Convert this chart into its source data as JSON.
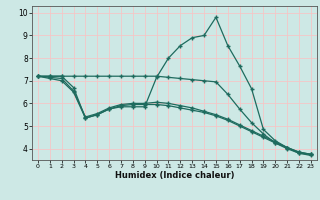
{
  "title": "",
  "xlabel": "Humidex (Indice chaleur)",
  "ylabel": "",
  "bg_color": "#cde8e5",
  "grid_color_h": "#f5c6c6",
  "grid_color_v": "#f5c6c6",
  "line_color": "#1e6b5e",
  "xlim": [
    -0.5,
    23.5
  ],
  "ylim": [
    3.5,
    10.3
  ],
  "xticks": [
    0,
    1,
    2,
    3,
    4,
    5,
    6,
    7,
    8,
    9,
    10,
    11,
    12,
    13,
    14,
    15,
    16,
    17,
    18,
    19,
    20,
    21,
    22,
    23
  ],
  "yticks": [
    4,
    5,
    6,
    7,
    8,
    9,
    10
  ],
  "line1_x": [
    0,
    1,
    2,
    3,
    4,
    5,
    6,
    7,
    8,
    9,
    10,
    11,
    12,
    13,
    14,
    15,
    16,
    17,
    18,
    19,
    20,
    21,
    22,
    23
  ],
  "line1_y": [
    7.2,
    7.2,
    7.2,
    6.7,
    5.35,
    5.5,
    5.75,
    5.85,
    5.85,
    5.85,
    7.15,
    8.0,
    8.55,
    8.9,
    9.0,
    9.8,
    8.55,
    7.65,
    6.65,
    4.85,
    4.35,
    4.05,
    3.8,
    3.75
  ],
  "line2_x": [
    0,
    1,
    2,
    3,
    4,
    5,
    6,
    7,
    8,
    9,
    10,
    11,
    12,
    13,
    14,
    15,
    16,
    17,
    18,
    19,
    20,
    21,
    22,
    23
  ],
  "line2_y": [
    7.2,
    7.2,
    7.2,
    7.2,
    7.2,
    7.2,
    7.2,
    7.2,
    7.2,
    7.2,
    7.2,
    7.15,
    7.1,
    7.05,
    7.0,
    6.95,
    6.4,
    5.75,
    5.15,
    4.65,
    4.25,
    4.05,
    3.85,
    3.75
  ],
  "line3_x": [
    0,
    1,
    2,
    3,
    4,
    5,
    6,
    7,
    8,
    9,
    10,
    11,
    12,
    13,
    14,
    15,
    16,
    17,
    18,
    19,
    20,
    21,
    22,
    23
  ],
  "line3_y": [
    7.2,
    7.1,
    7.0,
    6.5,
    5.35,
    5.5,
    5.75,
    5.9,
    5.95,
    5.95,
    5.95,
    5.9,
    5.8,
    5.7,
    5.6,
    5.45,
    5.25,
    5.0,
    4.75,
    4.5,
    4.25,
    4.0,
    3.8,
    3.7
  ],
  "line4_x": [
    0,
    1,
    2,
    3,
    4,
    5,
    6,
    7,
    8,
    9,
    10,
    11,
    12,
    13,
    14,
    15,
    16,
    17,
    18,
    19,
    20,
    21,
    22,
    23
  ],
  "line4_y": [
    7.2,
    7.15,
    7.1,
    6.55,
    5.4,
    5.55,
    5.8,
    5.95,
    6.0,
    6.0,
    6.05,
    6.0,
    5.9,
    5.8,
    5.65,
    5.5,
    5.3,
    5.05,
    4.8,
    4.55,
    4.3,
    4.05,
    3.85,
    3.75
  ]
}
